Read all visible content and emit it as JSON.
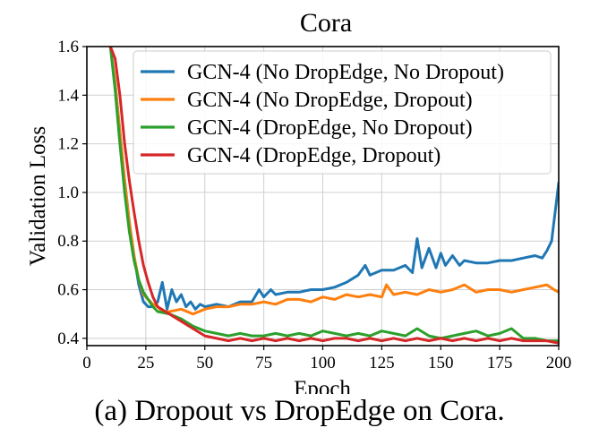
{
  "figure": {
    "caption": "(a) Dropout vs DropEdge on Cora."
  },
  "chart_data": {
    "type": "line",
    "title": "Cora",
    "xlabel": "Epoch",
    "ylabel": "Validation Loss",
    "xlim": [
      0,
      200
    ],
    "ylim": [
      0.37,
      1.6
    ],
    "xticks": [
      0,
      25,
      50,
      75,
      100,
      125,
      150,
      175,
      200
    ],
    "yticks": [
      0.4,
      0.6,
      0.8,
      1.0,
      1.2,
      1.4,
      1.6
    ],
    "xtick_labels": [
      "0",
      "25",
      "50",
      "75",
      "100",
      "125",
      "150",
      "175",
      "200"
    ],
    "ytick_labels": [
      "0.4",
      "0.6",
      "0.8",
      "1.0",
      "1.2",
      "1.4",
      "1.6"
    ],
    "grid": true,
    "legend_position": "top-right",
    "series": [
      {
        "name": "GCN-4 (No DropEdge, No Dropout)",
        "color": "#1f77b4",
        "x": [
          10,
          12,
          14,
          16,
          18,
          20,
          22,
          24,
          26,
          28,
          30,
          32,
          34,
          36,
          38,
          40,
          42,
          44,
          46,
          48,
          50,
          55,
          60,
          65,
          70,
          73,
          75,
          78,
          80,
          85,
          90,
          95,
          100,
          105,
          110,
          115,
          118,
          120,
          125,
          130,
          135,
          138,
          140,
          142,
          145,
          148,
          150,
          152,
          155,
          158,
          160,
          165,
          170,
          175,
          180,
          185,
          190,
          193,
          195,
          197,
          198,
          199,
          200
        ],
        "values": [
          1.6,
          1.45,
          1.25,
          1.05,
          0.88,
          0.74,
          0.62,
          0.55,
          0.53,
          0.53,
          0.55,
          0.63,
          0.52,
          0.6,
          0.55,
          0.58,
          0.53,
          0.55,
          0.52,
          0.54,
          0.53,
          0.54,
          0.53,
          0.55,
          0.55,
          0.6,
          0.57,
          0.6,
          0.58,
          0.59,
          0.59,
          0.6,
          0.6,
          0.61,
          0.63,
          0.66,
          0.7,
          0.66,
          0.68,
          0.68,
          0.7,
          0.67,
          0.81,
          0.69,
          0.77,
          0.69,
          0.75,
          0.7,
          0.74,
          0.7,
          0.72,
          0.71,
          0.71,
          0.72,
          0.72,
          0.73,
          0.74,
          0.73,
          0.76,
          0.8,
          0.88,
          0.96,
          1.04
        ]
      },
      {
        "name": "GCN-4 (No DropEdge, Dropout)",
        "color": "#ff7f0e",
        "x": [
          10,
          12,
          14,
          16,
          18,
          20,
          22,
          24,
          26,
          28,
          30,
          32,
          35,
          40,
          45,
          50,
          55,
          60,
          65,
          70,
          75,
          80,
          85,
          90,
          95,
          100,
          105,
          110,
          115,
          120,
          125,
          127,
          130,
          135,
          140,
          145,
          150,
          155,
          160,
          165,
          170,
          175,
          180,
          185,
          190,
          195,
          198,
          200
        ],
        "values": [
          1.6,
          1.45,
          1.25,
          1.05,
          0.88,
          0.74,
          0.64,
          0.58,
          0.56,
          0.54,
          0.53,
          0.51,
          0.51,
          0.52,
          0.5,
          0.52,
          0.53,
          0.53,
          0.54,
          0.54,
          0.55,
          0.54,
          0.56,
          0.56,
          0.55,
          0.57,
          0.56,
          0.58,
          0.57,
          0.58,
          0.57,
          0.62,
          0.58,
          0.59,
          0.58,
          0.6,
          0.59,
          0.6,
          0.62,
          0.59,
          0.6,
          0.6,
          0.59,
          0.6,
          0.61,
          0.62,
          0.6,
          0.59
        ]
      },
      {
        "name": "GCN-4 (DropEdge, No Dropout)",
        "color": "#2ca02c",
        "x": [
          10,
          12,
          14,
          16,
          18,
          20,
          22,
          24,
          26,
          28,
          30,
          35,
          40,
          45,
          50,
          55,
          60,
          65,
          70,
          75,
          80,
          85,
          90,
          95,
          100,
          105,
          110,
          115,
          120,
          125,
          130,
          135,
          140,
          145,
          150,
          155,
          160,
          165,
          170,
          175,
          180,
          185,
          190,
          195,
          200
        ],
        "values": [
          1.6,
          1.42,
          1.2,
          1.0,
          0.84,
          0.72,
          0.64,
          0.59,
          0.56,
          0.53,
          0.51,
          0.5,
          0.48,
          0.45,
          0.43,
          0.42,
          0.41,
          0.42,
          0.41,
          0.41,
          0.42,
          0.41,
          0.42,
          0.41,
          0.43,
          0.42,
          0.41,
          0.42,
          0.41,
          0.43,
          0.42,
          0.41,
          0.44,
          0.41,
          0.4,
          0.41,
          0.42,
          0.43,
          0.41,
          0.42,
          0.44,
          0.4,
          0.4,
          0.39,
          0.39
        ]
      },
      {
        "name": "GCN-4 (DropEdge, Dropout)",
        "color": "#d62728",
        "x": [
          10,
          12,
          14,
          16,
          18,
          20,
          22,
          24,
          26,
          28,
          30,
          35,
          40,
          45,
          50,
          55,
          60,
          65,
          70,
          75,
          80,
          85,
          90,
          95,
          100,
          105,
          110,
          115,
          120,
          125,
          130,
          135,
          140,
          145,
          150,
          155,
          160,
          165,
          170,
          175,
          180,
          185,
          190,
          195,
          200
        ],
        "values": [
          1.6,
          1.55,
          1.4,
          1.2,
          1.05,
          0.92,
          0.8,
          0.7,
          0.63,
          0.57,
          0.53,
          0.5,
          0.47,
          0.44,
          0.41,
          0.4,
          0.39,
          0.4,
          0.39,
          0.4,
          0.39,
          0.4,
          0.39,
          0.4,
          0.39,
          0.4,
          0.4,
          0.39,
          0.4,
          0.39,
          0.4,
          0.39,
          0.4,
          0.39,
          0.4,
          0.39,
          0.4,
          0.39,
          0.4,
          0.39,
          0.4,
          0.39,
          0.39,
          0.39,
          0.38
        ]
      }
    ]
  }
}
